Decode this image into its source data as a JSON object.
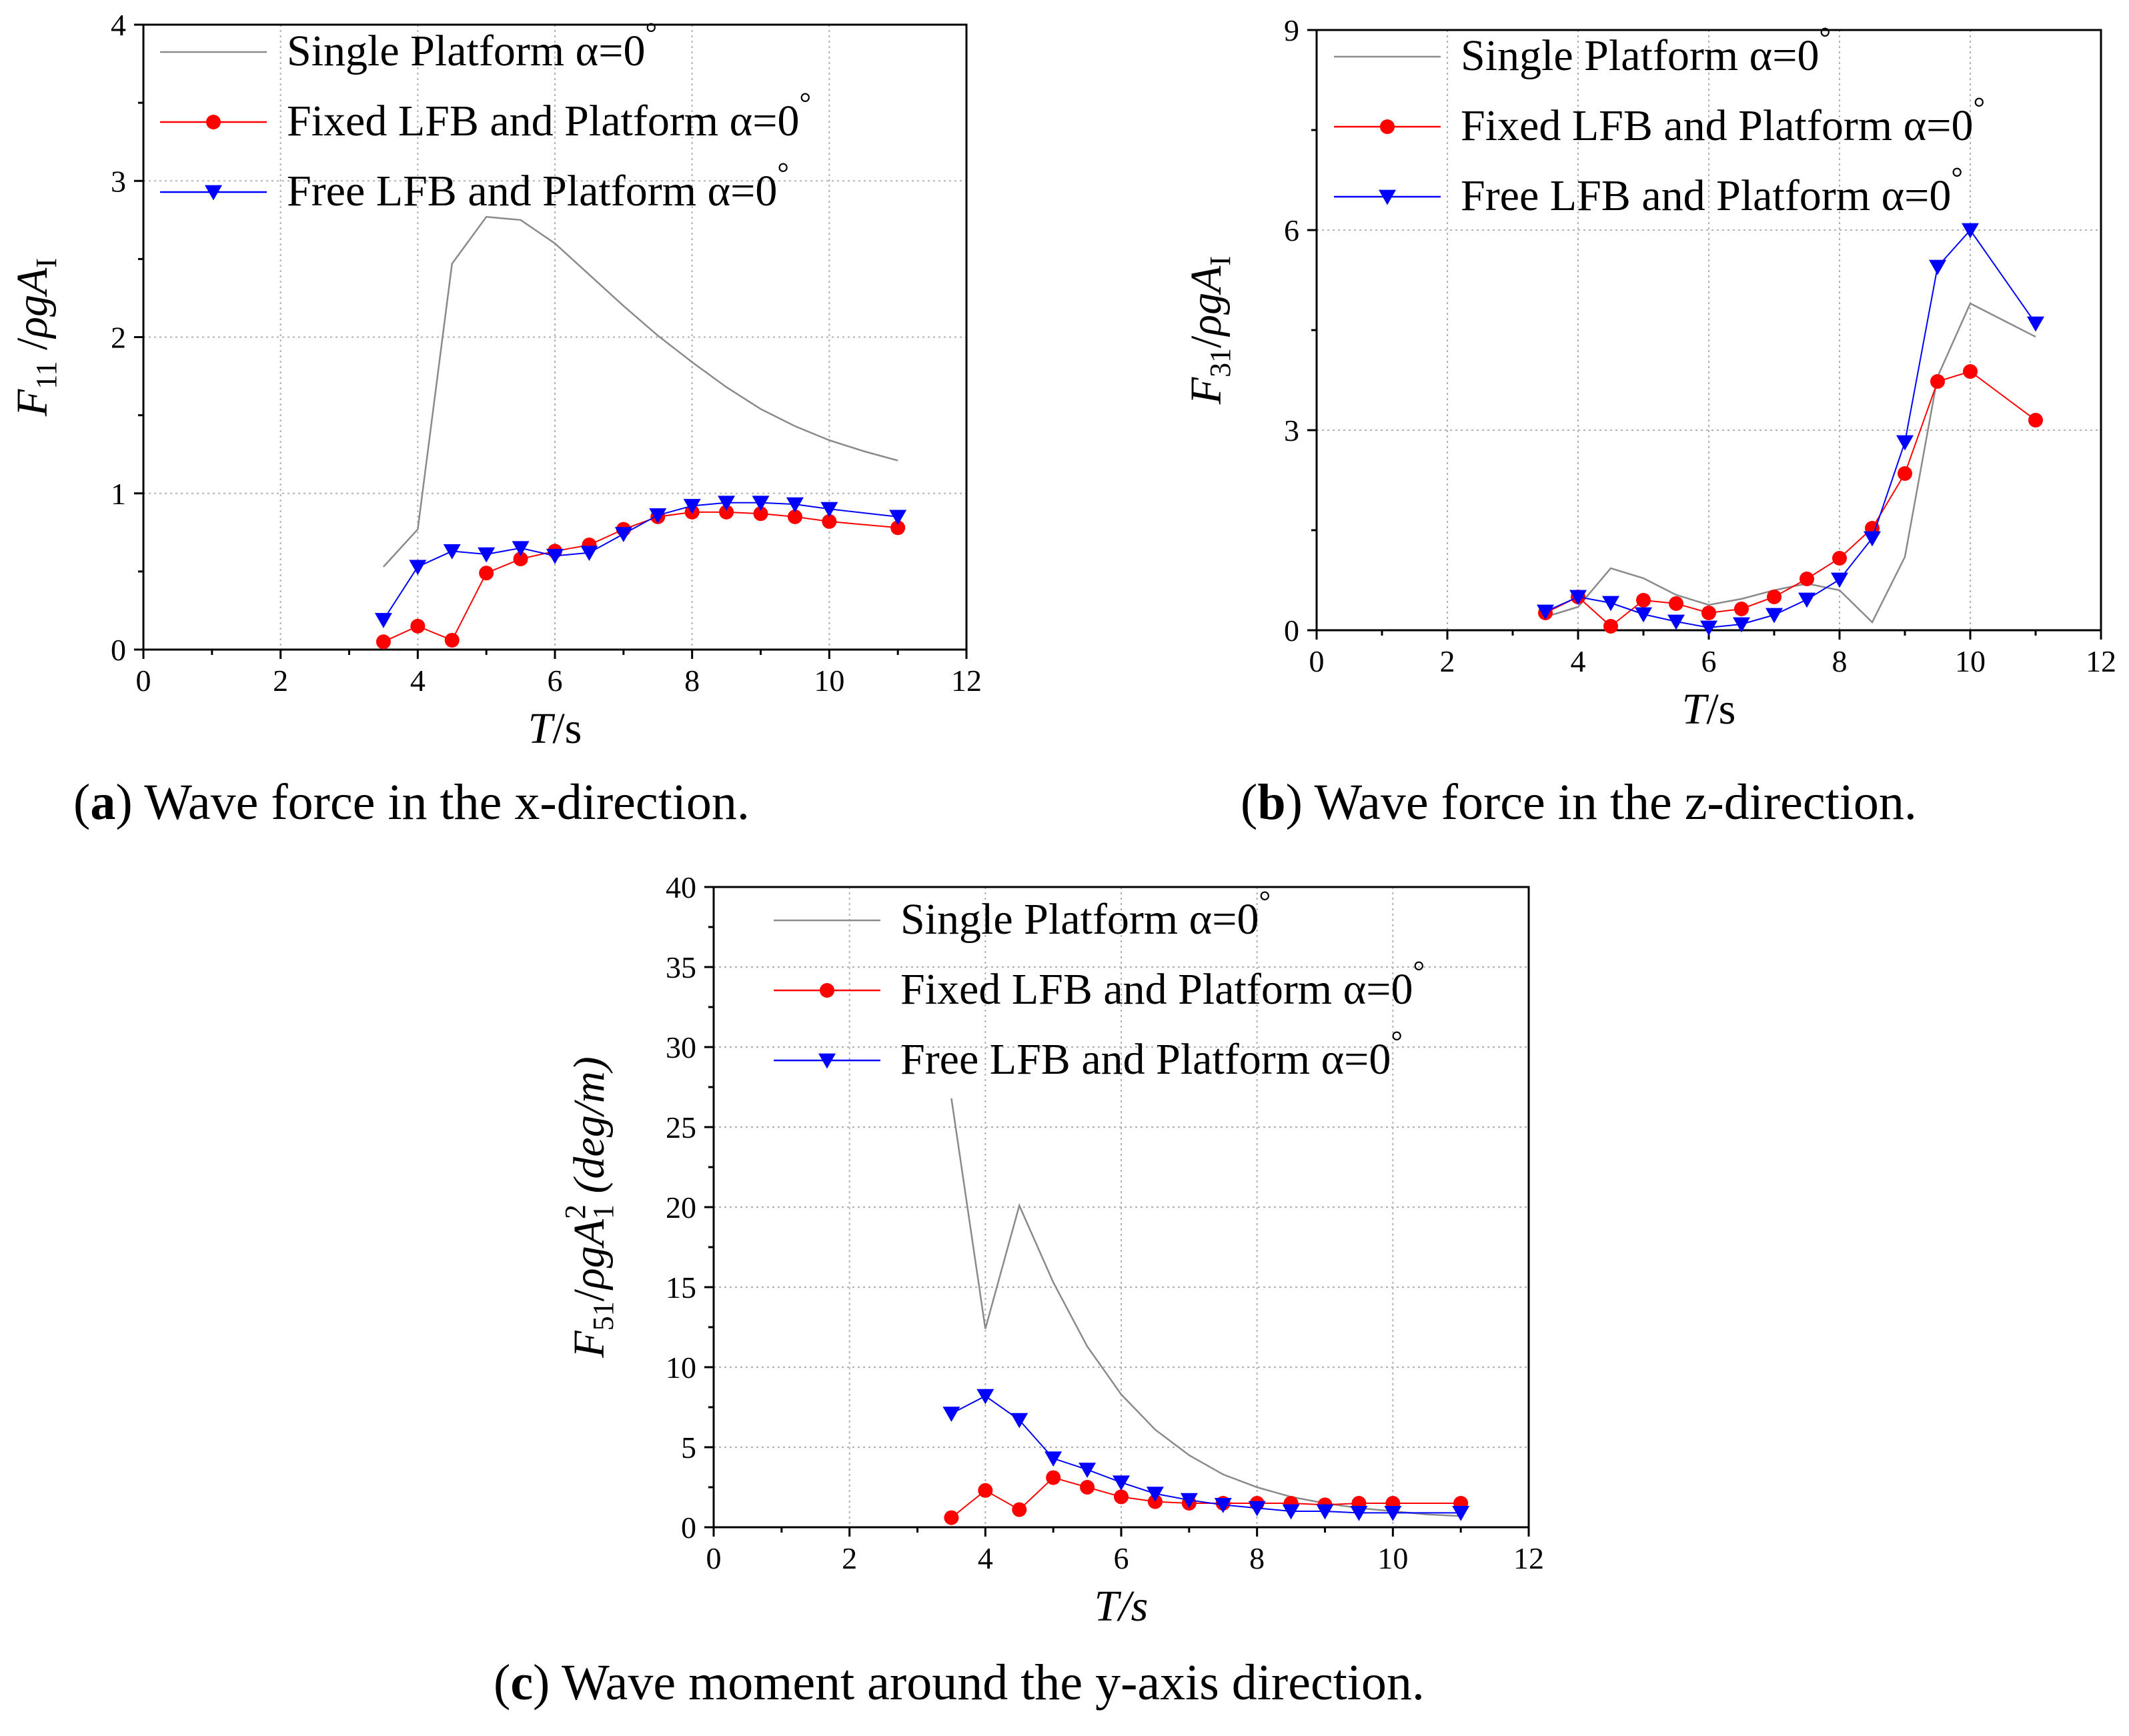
{
  "figure": {
    "captions": [
      {
        "letter": "a",
        "open": "(",
        "close": ")",
        "text": " Wave force in the x-direction."
      },
      {
        "letter": "b",
        "open": "(",
        "close": ")",
        "text": " Wave force in the z-direction."
      },
      {
        "letter": "c",
        "open": "(",
        "close": ")",
        "text": " Wave moment around the y-axis direction."
      }
    ]
  },
  "colors": {
    "single": "#8a8a8a",
    "fixed": "#ff0000",
    "free": "#0000ff",
    "grid": "#b0b0b0",
    "axis": "#000000"
  },
  "chart_data": [
    {
      "id": "a",
      "type": "line",
      "title": "",
      "xlabel": "T/s",
      "ylabel": "F11 /ρgAI",
      "xlim": [
        0,
        12
      ],
      "ylim": [
        0,
        4
      ],
      "xticks": [
        0,
        2,
        4,
        6,
        8,
        10,
        12
      ],
      "yticks": [
        0,
        1,
        2,
        3,
        4
      ],
      "grid": true,
      "legend": "top-left",
      "series": [
        {
          "name": "Single Platform α=0°",
          "style": "single",
          "x": [
            3.5,
            4.0,
            4.5,
            5.0,
            5.5,
            6.0,
            6.5,
            7.0,
            7.5,
            8.0,
            8.5,
            9.0,
            9.5,
            10.0,
            10.5,
            11.0
          ],
          "y": [
            0.53,
            0.77,
            2.47,
            2.77,
            2.75,
            2.6,
            2.4,
            2.2,
            2.01,
            1.84,
            1.68,
            1.54,
            1.43,
            1.34,
            1.27,
            1.21
          ]
        },
        {
          "name": "Fixed LFB and Platform α=0°",
          "style": "fixed",
          "x": [
            3.5,
            4.0,
            4.5,
            5.0,
            5.5,
            6.0,
            6.5,
            7.0,
            7.5,
            8.0,
            8.5,
            9.0,
            9.5,
            10.0,
            11.0
          ],
          "y": [
            0.05,
            0.15,
            0.06,
            0.49,
            0.58,
            0.63,
            0.67,
            0.77,
            0.85,
            0.88,
            0.88,
            0.87,
            0.85,
            0.82,
            0.78
          ]
        },
        {
          "name": "Free LFB and Platform α=0°",
          "style": "free",
          "x": [
            3.5,
            4.0,
            4.5,
            5.0,
            5.5,
            6.0,
            6.5,
            7.0,
            7.5,
            8.0,
            8.5,
            9.0,
            9.5,
            10.0,
            11.0
          ],
          "y": [
            0.19,
            0.53,
            0.63,
            0.61,
            0.65,
            0.6,
            0.62,
            0.74,
            0.86,
            0.92,
            0.94,
            0.94,
            0.93,
            0.9,
            0.85
          ]
        }
      ]
    },
    {
      "id": "b",
      "type": "line",
      "title": "",
      "xlabel": "T/s",
      "ylabel": "F31/ρgAI",
      "xlim": [
        0,
        12
      ],
      "ylim": [
        0,
        9
      ],
      "xticks": [
        0,
        2,
        4,
        6,
        8,
        10,
        12
      ],
      "yticks": [
        0,
        3,
        6,
        9
      ],
      "grid": true,
      "legend": "top-left",
      "series": [
        {
          "name": "Single Platform α=0°",
          "style": "single",
          "x": [
            3.5,
            4.0,
            4.5,
            5.0,
            5.5,
            6.0,
            6.5,
            7.0,
            7.5,
            8.0,
            8.5,
            9.0,
            9.5,
            10.0,
            10.5,
            11.0
          ],
          "y": [
            0.2,
            0.35,
            0.93,
            0.78,
            0.53,
            0.38,
            0.47,
            0.6,
            0.7,
            0.6,
            0.12,
            1.1,
            3.8,
            4.9,
            4.65,
            4.4
          ]
        },
        {
          "name": "Fixed LFB and Platform α=0°",
          "style": "fixed",
          "x": [
            3.5,
            4.0,
            4.5,
            5.0,
            5.5,
            6.0,
            6.5,
            7.0,
            7.5,
            8.0,
            8.5,
            9.0,
            9.5,
            10.0,
            11.0
          ],
          "y": [
            0.26,
            0.5,
            0.06,
            0.45,
            0.4,
            0.26,
            0.32,
            0.5,
            0.77,
            1.08,
            1.53,
            2.35,
            3.73,
            3.88,
            3.15
          ]
        },
        {
          "name": "Free LFB and Platform α=0°",
          "style": "free",
          "x": [
            3.5,
            4.0,
            4.5,
            5.0,
            5.5,
            6.0,
            6.5,
            7.0,
            7.5,
            8.0,
            8.5,
            9.0,
            9.5,
            10.0,
            11.0
          ],
          "y": [
            0.28,
            0.5,
            0.41,
            0.24,
            0.13,
            0.04,
            0.09,
            0.23,
            0.46,
            0.76,
            1.38,
            2.82,
            5.45,
            6.0,
            4.6
          ]
        }
      ]
    },
    {
      "id": "c",
      "type": "line",
      "title": "",
      "xlabel": "T/s",
      "ylabel": "F51/ρgA1² (deg/m)",
      "xlim": [
        0,
        12
      ],
      "ylim": [
        0,
        40
      ],
      "xticks": [
        0,
        2,
        4,
        6,
        8,
        10,
        12
      ],
      "yticks": [
        0,
        5,
        10,
        15,
        20,
        25,
        30,
        35,
        40
      ],
      "grid": true,
      "legend": "top-left",
      "series": [
        {
          "name": "Single Platform α=0°",
          "style": "single",
          "x": [
            3.5,
            4.0,
            4.5,
            5.0,
            5.5,
            6.0,
            6.5,
            7.0,
            7.5,
            8.0,
            8.5,
            9.0,
            9.5,
            10.0,
            10.5,
            11.0
          ],
          "y": [
            26.8,
            12.4,
            20.1,
            15.3,
            11.3,
            8.3,
            6.1,
            4.5,
            3.3,
            2.5,
            1.9,
            1.5,
            1.2,
            1.0,
            0.8,
            0.7
          ]
        },
        {
          "name": "Fixed LFB and Platform α=0°",
          "style": "fixed",
          "x": [
            3.5,
            4.0,
            4.5,
            5.0,
            5.5,
            6.0,
            6.5,
            7.0,
            7.5,
            8.0,
            8.5,
            9.0,
            9.5,
            10.0,
            11.0
          ],
          "y": [
            0.6,
            2.3,
            1.1,
            3.1,
            2.5,
            1.9,
            1.6,
            1.5,
            1.5,
            1.5,
            1.5,
            1.4,
            1.5,
            1.5,
            1.5
          ]
        },
        {
          "name": "Free LFB and Platform α=0°",
          "style": "free",
          "x": [
            3.5,
            4.0,
            4.5,
            5.0,
            5.5,
            6.0,
            6.5,
            7.0,
            7.5,
            8.0,
            8.5,
            9.0,
            9.5,
            10.0,
            11.0
          ],
          "y": [
            7.1,
            8.2,
            6.7,
            4.3,
            3.6,
            2.8,
            2.1,
            1.7,
            1.4,
            1.2,
            1.0,
            1.0,
            0.9,
            0.9,
            0.9
          ]
        }
      ]
    }
  ]
}
